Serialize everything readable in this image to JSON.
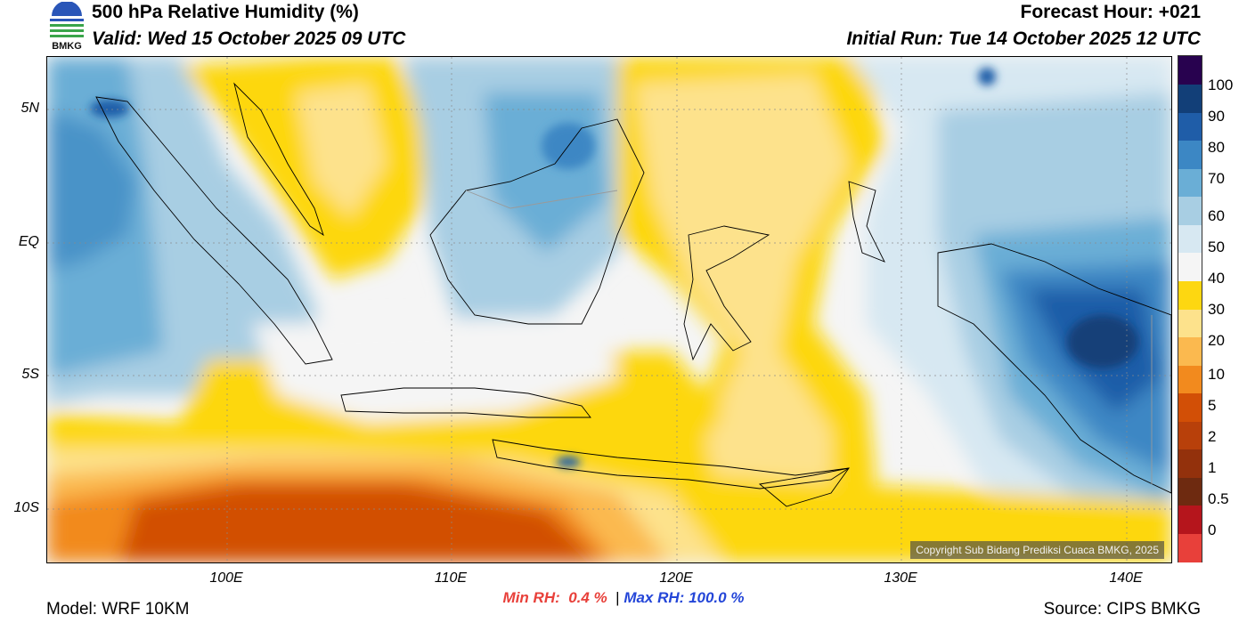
{
  "header": {
    "logo_text": "BMKG",
    "title": "500 hPa Relative Humidity (%)",
    "valid": "Valid: Wed 15 October 2025 09 UTC",
    "forecast_hour": "Forecast Hour: +021",
    "initial_run": "Initial Run: Tue 14 October 2025 12 UTC"
  },
  "map": {
    "lon_range": [
      92,
      142
    ],
    "lat_range": [
      -12,
      7
    ],
    "lat_labels": [
      {
        "lat": 5,
        "text": "5N"
      },
      {
        "lat": 0,
        "text": "EQ"
      },
      {
        "lat": -5,
        "text": "5S"
      },
      {
        "lat": -10,
        "text": "10S"
      }
    ],
    "lon_labels": [
      {
        "lon": 100,
        "text": "100E"
      },
      {
        "lon": 110,
        "text": "110E"
      },
      {
        "lon": 120,
        "text": "120E"
      },
      {
        "lon": 130,
        "text": "130E"
      },
      {
        "lon": 140,
        "text": "140E"
      }
    ],
    "copyright": "Copyright Sub Bidang Prediksi Cuaca BMKG, 2025"
  },
  "colorbar": {
    "colors": [
      "#e8403a",
      "#b5151c",
      "#6e2a10",
      "#93310c",
      "#b8400a",
      "#d24f06",
      "#f28a1e",
      "#fbb94f",
      "#fde28c",
      "#fdd711",
      "#f5f5f5",
      "#d7e8f2",
      "#a8cee3",
      "#6aaed6",
      "#3c87c4",
      "#1f5da8",
      "#123f78",
      "#28024f"
    ],
    "labels": [
      "0",
      "0.5",
      "1",
      "2",
      "5",
      "10",
      "20",
      "30",
      "40",
      "50",
      "60",
      "70",
      "80",
      "90",
      "100"
    ]
  },
  "stats": {
    "min_label": "Min RH:",
    "min_value": "0.4 %",
    "separator": "|",
    "max_label": "Max RH:",
    "max_value": "100.0 %"
  },
  "footer": {
    "model": "Model: WRF 10KM",
    "source": "Source: CIPS BMKG"
  }
}
